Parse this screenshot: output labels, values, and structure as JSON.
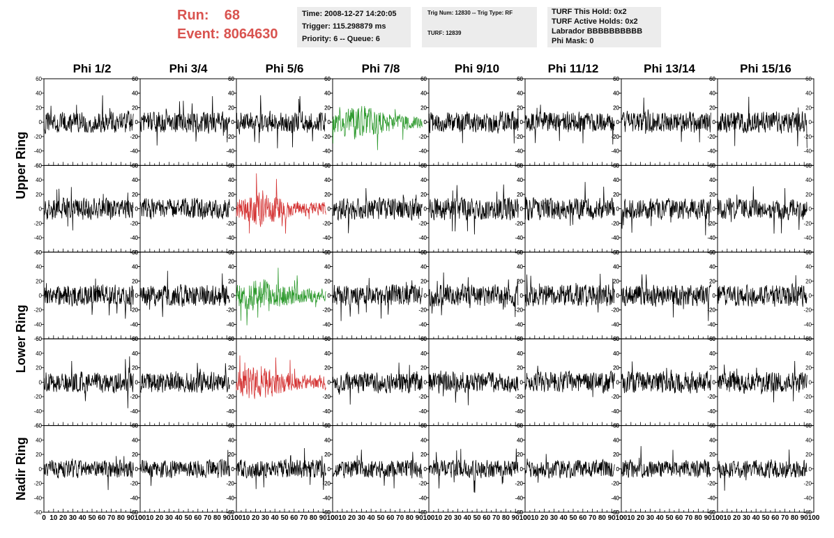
{
  "header": {
    "run_label": "Run:",
    "run_value": "68",
    "event_label": "Event:",
    "event_value": "8064630",
    "info_left": {
      "time": "Time: 2008-12-27 14:20:05",
      "trigger": "Trigger: 115.298879 ms",
      "priority": "Priority: 6 -- Queue: 6"
    },
    "info_mid": {
      "trig": "Trig Num: 12830 -- Trig Type: RF",
      "turf": "TURF: 12839"
    },
    "info_right": {
      "hold": "TURF This Hold: 0x2",
      "active": "TURF Active Holds: 0x2",
      "labrador": "Labrador BBBBBBBBBB",
      "phimask": "Phi Mask: 0"
    },
    "colors": {
      "header_red": "#d9534f",
      "info_bg": "#ececec"
    }
  },
  "chart_data": {
    "type": "line",
    "columns": [
      "Phi 1/2",
      "Phi 3/4",
      "Phi 5/6",
      "Phi 7/8",
      "Phi 9/10",
      "Phi 11/12",
      "Phi 13/14",
      "Phi 15/16"
    ],
    "row_labels": [
      "Upper Ring",
      "Lower Ring",
      "Nadir Ring"
    ],
    "rows": 5,
    "ylim": [
      -60,
      60
    ],
    "yticks": [
      -60,
      -40,
      -20,
      0,
      20,
      40,
      60
    ],
    "xlim": [
      0,
      100
    ],
    "xticks": [
      0,
      10,
      20,
      30,
      40,
      50,
      60,
      70,
      80,
      90,
      100
    ],
    "samples": 256,
    "x_extent": 93,
    "trace_colors": {
      "default": "#000000",
      "green": "#2e9a2e",
      "red": "#d43333"
    },
    "highlighted": [
      {
        "row": 0,
        "col": 3,
        "color": "green"
      },
      {
        "row": 1,
        "col": 2,
        "color": "red"
      },
      {
        "row": 2,
        "col": 2,
        "color": "green"
      },
      {
        "row": 3,
        "col": 2,
        "color": "red"
      }
    ],
    "amplitude_rms": {
      "default": 13,
      "nadir": 11,
      "highlighted": 15
    }
  }
}
